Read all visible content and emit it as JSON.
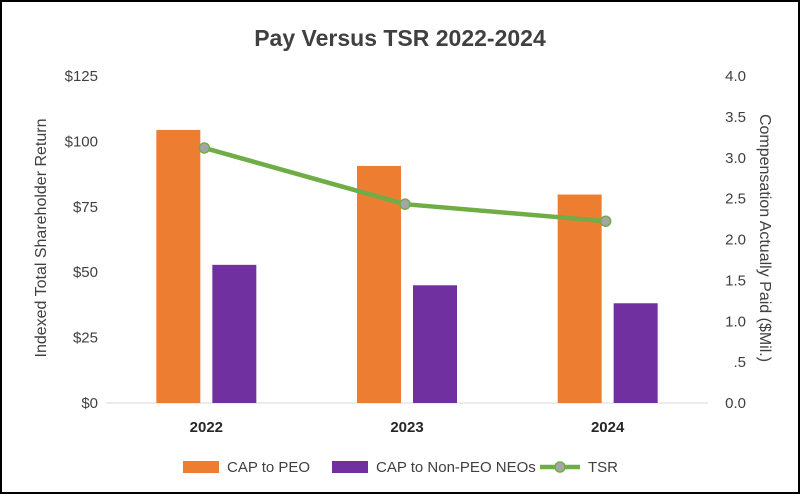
{
  "chart_data": {
    "type": "bar",
    "title": "Pay Versus TSR 2022-2024",
    "categories": [
      "2022",
      "2023",
      "2024"
    ],
    "left_axis": {
      "label": "Indexed Total Shareholder Return",
      "range": [
        0,
        125
      ],
      "ticks": [
        0,
        25,
        50,
        75,
        100,
        125
      ],
      "tick_labels": [
        "$0",
        "$25",
        "$50",
        "$75",
        "$100",
        "$125"
      ]
    },
    "right_axis": {
      "label": "Compensation Actually Paid ($Mil.)",
      "range": [
        0,
        4
      ],
      "ticks": [
        0,
        0.5,
        1,
        1.5,
        2,
        2.5,
        3,
        3.5,
        4
      ],
      "tick_labels": [
        "0.0",
        ".5",
        "1.0",
        "1.5",
        "2.0",
        "2.5",
        "3.0",
        "3.5",
        "4.0"
      ]
    },
    "series": [
      {
        "name": "CAP to PEO",
        "type": "bar",
        "axis": "right",
        "color": "#ED7D31",
        "values": [
          3.34,
          2.9,
          2.55
        ]
      },
      {
        "name": "CAP to Non-PEO NEOs",
        "type": "bar",
        "axis": "right",
        "color": "#7030A0",
        "values": [
          1.69,
          1.44,
          1.22
        ]
      },
      {
        "name": "TSR",
        "type": "line",
        "axis": "left",
        "color": "#70AD47",
        "marker_color": "#A5A5A5",
        "values": [
          97.5,
          76,
          69.5
        ]
      }
    ],
    "legend": "bottom"
  }
}
